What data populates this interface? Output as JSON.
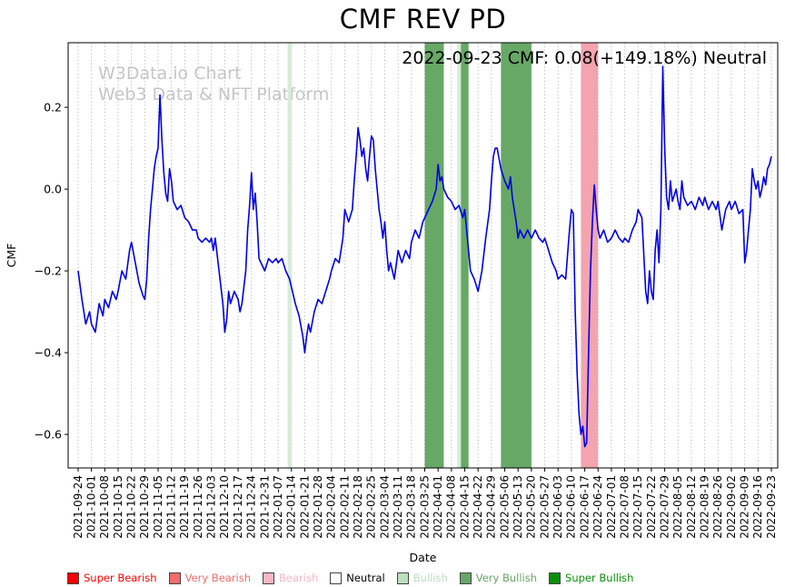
{
  "annotation": "2022-09-23 CMF: 0.08(+149.18%) Neutral",
  "watermark": {
    "line1": "W3Data.io Chart",
    "line2": "Web3 Data & NFT Platform"
  },
  "chart_data": {
    "type": "line",
    "title": "CMF REV PD",
    "xlabel": "Date",
    "ylabel": "CMF",
    "ylim": [
      -0.682,
      0.358
    ],
    "grid": "vertical-dotted",
    "grid_color": "#ababab",
    "line_width": 1.6,
    "yticks": [
      {
        "value": 0.2,
        "label": "0.2"
      },
      {
        "value": 0.0,
        "label": "0.0"
      },
      {
        "value": -0.2,
        "label": "−0.2"
      },
      {
        "value": -0.4,
        "label": "−0.4"
      },
      {
        "value": -0.6,
        "label": "−0.6"
      }
    ],
    "x_tick_interval_days": 7,
    "x_tick_labels": [
      "2021-09-24",
      "2021-10-01",
      "2021-10-08",
      "2021-10-15",
      "2021-10-22",
      "2021-10-29",
      "2021-11-05",
      "2021-11-12",
      "2021-11-19",
      "2021-11-26",
      "2021-12-03",
      "2021-12-10",
      "2021-12-17",
      "2021-12-24",
      "2021-12-31",
      "2022-01-07",
      "2022-01-14",
      "2022-01-21",
      "2022-01-28",
      "2022-02-04",
      "2022-02-11",
      "2022-02-18",
      "2022-02-25",
      "2022-03-04",
      "2022-03-11",
      "2022-03-18",
      "2022-03-25",
      "2022-04-01",
      "2022-04-08",
      "2022-04-15",
      "2022-04-22",
      "2022-04-29",
      "2022-05-06",
      "2022-05-13",
      "2022-05-20",
      "2022-05-27",
      "2022-06-03",
      "2022-06-10",
      "2022-06-17",
      "2022-06-24",
      "2022-07-01",
      "2022-07-08",
      "2022-07-15",
      "2022-07-22",
      "2022-07-29",
      "2022-08-05",
      "2022-08-12",
      "2022-08-19",
      "2022-08-26",
      "2022-09-02",
      "2022-09-09",
      "2022-09-16",
      "2022-09-23"
    ],
    "band_colors": {
      "Bearish": "#f3a4ae",
      "Bullish": "#d6ecd6",
      "Very Bullish": "#67a867"
    },
    "bands": [
      {
        "start": "2022-01-12",
        "end": "2022-01-14",
        "start_day": 110,
        "end_day": 112,
        "level": "Bullish"
      },
      {
        "start": "2022-03-25",
        "end": "2022-04-04",
        "start_day": 182,
        "end_day": 192,
        "level": "Very Bullish"
      },
      {
        "start": "2022-04-11",
        "end": "2022-04-13",
        "start_day": 199,
        "end_day": 201,
        "level": "Bullish"
      },
      {
        "start": "2022-04-13",
        "end": "2022-04-17",
        "start_day": 201,
        "end_day": 205,
        "level": "Very Bullish"
      },
      {
        "start": "2022-05-04",
        "end": "2022-05-20",
        "start_day": 222,
        "end_day": 238,
        "level": "Very Bullish"
      },
      {
        "start": "2022-06-15",
        "end": "2022-06-24",
        "start_day": 264,
        "end_day": 273,
        "level": "Bearish"
      }
    ],
    "series": [
      {
        "name": "CMF",
        "color": "#0000e6",
        "x_unit": "days since 2021-09-24",
        "points": [
          [
            0,
            -0.2
          ],
          [
            2,
            -0.27
          ],
          [
            4,
            -0.33
          ],
          [
            6,
            -0.3
          ],
          [
            7,
            -0.33
          ],
          [
            9,
            -0.35
          ],
          [
            11,
            -0.28
          ],
          [
            13,
            -0.31
          ],
          [
            14,
            -0.27
          ],
          [
            16,
            -0.29
          ],
          [
            18,
            -0.25
          ],
          [
            20,
            -0.27
          ],
          [
            21,
            -0.25
          ],
          [
            23,
            -0.2
          ],
          [
            25,
            -0.22
          ],
          [
            27,
            -0.15
          ],
          [
            28,
            -0.13
          ],
          [
            30,
            -0.18
          ],
          [
            32,
            -0.23
          ],
          [
            34,
            -0.26
          ],
          [
            35,
            -0.27
          ],
          [
            36,
            -0.22
          ],
          [
            37,
            -0.12
          ],
          [
            38,
            -0.05
          ],
          [
            39,
            0
          ],
          [
            40,
            0.05
          ],
          [
            41,
            0.08
          ],
          [
            42,
            0.1
          ],
          [
            43,
            0.23
          ],
          [
            44,
            0.12
          ],
          [
            45,
            0.04
          ],
          [
            46,
            -0.01
          ],
          [
            47,
            -0.03
          ],
          [
            48,
            0.05
          ],
          [
            49,
            0.02
          ],
          [
            50,
            -0.03
          ],
          [
            52,
            -0.05
          ],
          [
            54,
            -0.04
          ],
          [
            56,
            -0.07
          ],
          [
            58,
            -0.08
          ],
          [
            60,
            -0.1
          ],
          [
            62,
            -0.1
          ],
          [
            63,
            -0.12
          ],
          [
            65,
            -0.13
          ],
          [
            67,
            -0.12
          ],
          [
            69,
            -0.13
          ],
          [
            70,
            -0.12
          ],
          [
            71,
            -0.15
          ],
          [
            72,
            -0.12
          ],
          [
            74,
            -0.2
          ],
          [
            76,
            -0.28
          ],
          [
            77,
            -0.35
          ],
          [
            78,
            -0.32
          ],
          [
            79,
            -0.25
          ],
          [
            80,
            -0.28
          ],
          [
            82,
            -0.25
          ],
          [
            84,
            -0.27
          ],
          [
            85,
            -0.3
          ],
          [
            86,
            -0.28
          ],
          [
            88,
            -0.2
          ],
          [
            89,
            -0.1
          ],
          [
            90,
            -0.04
          ],
          [
            91,
            0.04
          ],
          [
            92,
            -0.05
          ],
          [
            93,
            -0.01
          ],
          [
            94,
            -0.08
          ],
          [
            95,
            -0.17
          ],
          [
            96,
            -0.18
          ],
          [
            98,
            -0.2
          ],
          [
            100,
            -0.17
          ],
          [
            102,
            -0.18
          ],
          [
            104,
            -0.17
          ],
          [
            105,
            -0.18
          ],
          [
            107,
            -0.17
          ],
          [
            109,
            -0.2
          ],
          [
            111,
            -0.22
          ],
          [
            112,
            -0.24
          ],
          [
            114,
            -0.28
          ],
          [
            116,
            -0.31
          ],
          [
            118,
            -0.36
          ],
          [
            119,
            -0.4
          ],
          [
            120,
            -0.36
          ],
          [
            121,
            -0.33
          ],
          [
            122,
            -0.35
          ],
          [
            124,
            -0.3
          ],
          [
            126,
            -0.27
          ],
          [
            128,
            -0.28
          ],
          [
            130,
            -0.25
          ],
          [
            132,
            -0.22
          ],
          [
            133,
            -0.2
          ],
          [
            135,
            -0.17
          ],
          [
            137,
            -0.18
          ],
          [
            139,
            -0.12
          ],
          [
            140,
            -0.05
          ],
          [
            142,
            -0.08
          ],
          [
            144,
            -0.05
          ],
          [
            145,
            0.02
          ],
          [
            146,
            0.08
          ],
          [
            147,
            0.15
          ],
          [
            148,
            0.12
          ],
          [
            149,
            0.08
          ],
          [
            150,
            0.1
          ],
          [
            151,
            0.05
          ],
          [
            152,
            0.02
          ],
          [
            153,
            0.08
          ],
          [
            154,
            0.13
          ],
          [
            155,
            0.12
          ],
          [
            156,
            0.05
          ],
          [
            157,
            0
          ],
          [
            158,
            -0.05
          ],
          [
            159,
            -0.08
          ],
          [
            160,
            -0.12
          ],
          [
            161,
            -0.08
          ],
          [
            162,
            -0.15
          ],
          [
            163,
            -0.2
          ],
          [
            164,
            -0.18
          ],
          [
            166,
            -0.22
          ],
          [
            168,
            -0.15
          ],
          [
            170,
            -0.18
          ],
          [
            172,
            -0.15
          ],
          [
            174,
            -0.17
          ],
          [
            175,
            -0.13
          ],
          [
            177,
            -0.1
          ],
          [
            179,
            -0.12
          ],
          [
            181,
            -0.08
          ],
          [
            182,
            -0.07
          ],
          [
            184,
            -0.05
          ],
          [
            186,
            -0.03
          ],
          [
            188,
            0
          ],
          [
            189,
            0.06
          ],
          [
            190,
            0.02
          ],
          [
            191,
            0.03
          ],
          [
            192,
            0
          ],
          [
            194,
            -0.02
          ],
          [
            196,
            -0.03
          ],
          [
            198,
            -0.05
          ],
          [
            200,
            -0.04
          ],
          [
            202,
            -0.07
          ],
          [
            203,
            -0.05
          ],
          [
            204,
            -0.1
          ],
          [
            205,
            -0.15
          ],
          [
            206,
            -0.2
          ],
          [
            208,
            -0.22
          ],
          [
            210,
            -0.25
          ],
          [
            212,
            -0.2
          ],
          [
            214,
            -0.12
          ],
          [
            216,
            -0.05
          ],
          [
            217,
            0.02
          ],
          [
            218,
            0.08
          ],
          [
            219,
            0.1
          ],
          [
            220,
            0.1
          ],
          [
            222,
            0.05
          ],
          [
            224,
            0.02
          ],
          [
            226,
            0
          ],
          [
            227,
            0.03
          ],
          [
            228,
            -0.02
          ],
          [
            230,
            -0.08
          ],
          [
            231,
            -0.12
          ],
          [
            232,
            -0.1
          ],
          [
            234,
            -0.12
          ],
          [
            236,
            -0.1
          ],
          [
            238,
            -0.12
          ],
          [
            240,
            -0.1
          ],
          [
            242,
            -0.12
          ],
          [
            244,
            -0.13
          ],
          [
            245,
            -0.12
          ],
          [
            247,
            -0.15
          ],
          [
            249,
            -0.18
          ],
          [
            251,
            -0.2
          ],
          [
            252,
            -0.22
          ],
          [
            254,
            -0.21
          ],
          [
            256,
            -0.22
          ],
          [
            258,
            -0.1
          ],
          [
            259,
            -0.05
          ],
          [
            260,
            -0.06
          ],
          [
            261,
            -0.3
          ],
          [
            262,
            -0.45
          ],
          [
            263,
            -0.55
          ],
          [
            264,
            -0.6
          ],
          [
            265,
            -0.58
          ],
          [
            266,
            -0.63
          ],
          [
            267,
            -0.62
          ],
          [
            268,
            -0.4
          ],
          [
            269,
            -0.2
          ],
          [
            270,
            -0.08
          ],
          [
            271,
            0.01
          ],
          [
            272,
            -0.05
          ],
          [
            273,
            -0.1
          ],
          [
            274,
            -0.12
          ],
          [
            276,
            -0.1
          ],
          [
            278,
            -0.13
          ],
          [
            280,
            -0.12
          ],
          [
            282,
            -0.1
          ],
          [
            284,
            -0.12
          ],
          [
            286,
            -0.13
          ],
          [
            287,
            -0.12
          ],
          [
            289,
            -0.13
          ],
          [
            291,
            -0.1
          ],
          [
            293,
            -0.08
          ],
          [
            294,
            -0.05
          ],
          [
            296,
            -0.07
          ],
          [
            298,
            -0.25
          ],
          [
            299,
            -0.28
          ],
          [
            300,
            -0.2
          ],
          [
            301,
            -0.25
          ],
          [
            302,
            -0.27
          ],
          [
            303,
            -0.15
          ],
          [
            304,
            -0.1
          ],
          [
            305,
            -0.18
          ],
          [
            306,
            -0.05
          ],
          [
            307,
            0.3
          ],
          [
            308,
            0.1
          ],
          [
            309,
            -0.02
          ],
          [
            310,
            -0.05
          ],
          [
            311,
            0.02
          ],
          [
            312,
            -0.03
          ],
          [
            314,
            0
          ],
          [
            315,
            -0.03
          ],
          [
            316,
            -0.05
          ],
          [
            317,
            0.02
          ],
          [
            318,
            -0.02
          ],
          [
            320,
            -0.04
          ],
          [
            322,
            -0.03
          ],
          [
            324,
            -0.05
          ],
          [
            326,
            -0.02
          ],
          [
            328,
            -0.04
          ],
          [
            329,
            -0.02
          ],
          [
            331,
            -0.05
          ],
          [
            333,
            -0.03
          ],
          [
            335,
            -0.05
          ],
          [
            336,
            -0.03
          ],
          [
            338,
            -0.1
          ],
          [
            340,
            -0.05
          ],
          [
            342,
            -0.03
          ],
          [
            343,
            -0.05
          ],
          [
            345,
            -0.03
          ],
          [
            347,
            -0.06
          ],
          [
            349,
            -0.05
          ],
          [
            350,
            -0.18
          ],
          [
            351,
            -0.15
          ],
          [
            352,
            -0.1
          ],
          [
            353,
            -0.05
          ],
          [
            354,
            0.05
          ],
          [
            355,
            0.02
          ],
          [
            356,
            0
          ],
          [
            357,
            0.02
          ],
          [
            358,
            -0.02
          ],
          [
            359,
            0
          ],
          [
            360,
            0.03
          ],
          [
            361,
            0.01
          ],
          [
            362,
            0.05
          ],
          [
            363,
            0.06
          ],
          [
            364,
            0.08
          ]
        ]
      }
    ]
  },
  "legend": {
    "items": [
      {
        "label": "Super Bearish",
        "color": "#ff0000",
        "text_color": "#ff0000"
      },
      {
        "label": "Very Bearish",
        "color": "#f26c6c",
        "text_color": "#f26c6c"
      },
      {
        "label": "Bearish",
        "color": "#f7b8c3",
        "text_color": "#f7b8c3"
      },
      {
        "label": "Neutral",
        "color": "#ffffff",
        "text_color": "#000000"
      },
      {
        "label": "Bullish",
        "color": "#bcdfbc",
        "text_color": "#bcdfbc"
      },
      {
        "label": "Very Bullish",
        "color": "#66a766",
        "text_color": "#66a766"
      },
      {
        "label": "Super Bullish",
        "color": "#0a8f0a",
        "text_color": "#0a8f0a"
      }
    ]
  }
}
